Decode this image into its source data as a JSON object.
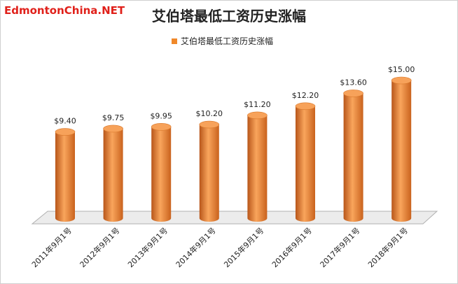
{
  "chart_data": {
    "type": "bar",
    "watermark": "EdmontonChina.NET",
    "title": "艾伯塔最低工资历史涨幅",
    "categories": [
      "2011年9月1号",
      "2012年9月1号",
      "2013年9月1号",
      "2014年9月1号",
      "2015年9月1号",
      "2016年9月1号",
      "2017年9月1号",
      "2018年9月1号"
    ],
    "series": [
      {
        "name": "艾伯塔最低工资历史涨幅",
        "color": "#f0882a",
        "values": [
          9.4,
          9.75,
          9.95,
          10.2,
          11.2,
          12.2,
          13.6,
          15.0
        ],
        "value_labels": [
          "$9.40",
          "$9.75",
          "$9.95",
          "$10.20",
          "$11.20",
          "$12.20",
          "$13.60",
          "$15.00"
        ]
      }
    ]
  }
}
